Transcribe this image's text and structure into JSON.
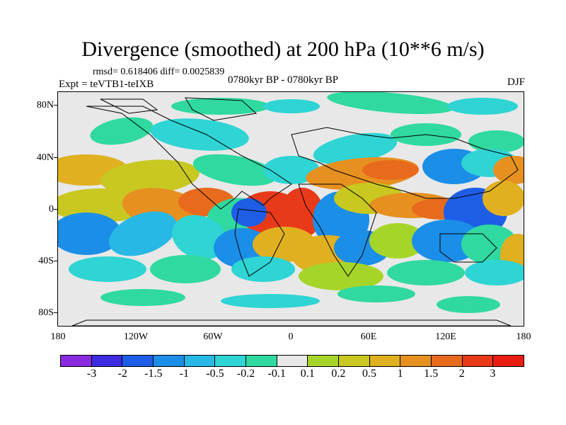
{
  "title": "Divergence (smoothed) at 200 hPa (10**6 m/s)",
  "stats": "rmsd= 0.618406  diff= 0.0025839",
  "experiment": "Expt = teVTB1-teIXB",
  "period": "0780kyr BP - 0780kyr BP",
  "season": "DJF",
  "axes": {
    "y_labels": [
      "80N",
      "40N",
      "0",
      "40S",
      "80S"
    ],
    "x_labels": [
      "180",
      "120W",
      "60W",
      "0",
      "60E",
      "120E",
      "180"
    ]
  },
  "colorbar": {
    "labels": [
      "-3",
      "-2",
      "-1.5",
      "-1",
      "-0.5",
      "-0.2",
      "-0.1",
      "0.1",
      "0.2",
      "0.5",
      "1",
      "1.5",
      "2",
      "3"
    ],
    "colors": [
      "#8a2be2",
      "#3c2be0",
      "#1e5ee6",
      "#1b8ee8",
      "#27b8e6",
      "#2fd4d4",
      "#30d9a0",
      "#e8e8e8",
      "#a6d52a",
      "#c8c820",
      "#e0b020",
      "#e69020",
      "#e86a1c",
      "#e83a18",
      "#e81e10"
    ]
  },
  "field_colors": {
    "neutral": "#e8e8e8",
    "green": "#30d9a0",
    "cyan": "#2fd4d4",
    "lightblue": "#27b8e6",
    "blue": "#1b8ee8",
    "deepblue": "#1e5ee6",
    "yellowgreen": "#a6d52a",
    "yellow": "#c8c820",
    "orange": "#e0b020",
    "darkorange": "#e69020",
    "red": "#e86a1c",
    "deepred": "#e83a18"
  }
}
